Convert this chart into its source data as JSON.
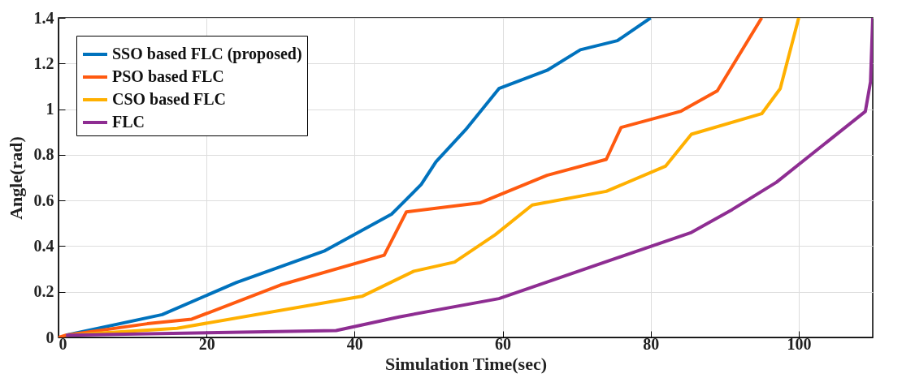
{
  "chart_data": {
    "type": "line",
    "xlabel": "Simulation Time(sec)",
    "ylabel": "Angle(rad)",
    "xlim": [
      0,
      110
    ],
    "ylim": [
      0,
      1.4
    ],
    "xticks": [
      0,
      20,
      40,
      60,
      80,
      100
    ],
    "yticks": [
      0,
      0.2,
      0.4,
      0.6,
      0.8,
      1,
      1.2,
      1.4
    ],
    "grid": true,
    "legend": "top left",
    "line_style": "solid",
    "marker": "none",
    "series": [
      {
        "name": "SSO based FLC (proposed)",
        "color": "#0072bd",
        "x": [
          1,
          14,
          24,
          36,
          45,
          49,
          51,
          55,
          59.5,
          66,
          70.5,
          75.5,
          80
        ],
        "values": [
          0.01,
          0.1,
          0.24,
          0.38,
          0.54,
          0.67,
          0.77,
          0.91,
          1.09,
          1.17,
          1.26,
          1.3,
          1.4
        ]
      },
      {
        "name": "PSO based FLC",
        "color": "#ff5a10",
        "x": [
          0,
          1,
          12,
          18,
          30,
          44,
          47,
          57,
          66,
          74,
          76,
          84,
          89,
          95
        ],
        "values": [
          0,
          0.01,
          0.06,
          0.08,
          0.23,
          0.36,
          0.55,
          0.59,
          0.71,
          0.78,
          0.92,
          0.99,
          1.08,
          1.4
        ]
      },
      {
        "name": "CSO based FLC",
        "color": "#ffb000",
        "x": [
          1,
          16,
          41,
          48,
          53.5,
          59,
          64,
          74,
          82,
          85.5,
          95,
          97.5,
          100
        ],
        "values": [
          0.01,
          0.04,
          0.18,
          0.29,
          0.33,
          0.45,
          0.58,
          0.64,
          0.75,
          0.89,
          0.98,
          1.09,
          1.4
        ]
      },
      {
        "name": "FLC",
        "color": "#8e2d92",
        "x": [
          1,
          37.5,
          46,
          59.5,
          85.5,
          91,
          97,
          109,
          109.7,
          110
        ],
        "values": [
          0.01,
          0.03,
          0.09,
          0.17,
          0.46,
          0.56,
          0.68,
          0.99,
          1.12,
          1.4
        ]
      }
    ]
  }
}
